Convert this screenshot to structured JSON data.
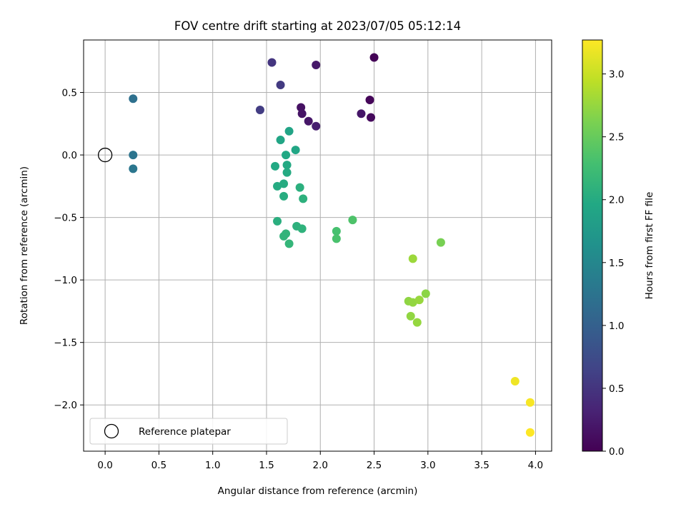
{
  "chart_data": {
    "type": "scatter",
    "title": "FOV centre drift starting at 2023/07/05 05:12:14",
    "xlabel": "Angular distance from reference (arcmin)",
    "ylabel": "Rotation from reference (arcmin)",
    "xlim": [
      -0.2,
      4.15
    ],
    "ylim": [
      -2.37,
      0.92
    ],
    "xticks": [
      0.0,
      0.5,
      1.0,
      1.5,
      2.0,
      2.5,
      3.0,
      3.5,
      4.0
    ],
    "xtick_labels": [
      "0.0",
      "0.5",
      "1.0",
      "1.5",
      "2.0",
      "2.5",
      "3.0",
      "3.5",
      "4.0"
    ],
    "yticks": [
      0.5,
      0.0,
      -0.5,
      -1.0,
      -1.5,
      -2.0
    ],
    "ytick_labels": [
      "0.5",
      "0.0",
      "−0.5",
      "−1.0",
      "−1.5",
      "−2.0"
    ],
    "grid": true,
    "legend": {
      "placement": "lower-left",
      "entries": [
        "Reference platepar"
      ]
    },
    "reference_point": {
      "x": 0.0,
      "y": 0.0,
      "label": "Reference platepar"
    },
    "colorbar": {
      "label": "Hours from first FF file",
      "colormap": "viridis",
      "range": [
        0.0,
        3.27
      ],
      "ticks": [
        0.0,
        0.5,
        1.0,
        1.5,
        2.0,
        2.5,
        3.0
      ],
      "tick_labels": [
        "0.0",
        "0.5",
        "1.0",
        "1.5",
        "2.0",
        "2.5",
        "3.0"
      ]
    },
    "points": [
      {
        "x": 2.5,
        "y": 0.78,
        "hours": 0.02
      },
      {
        "x": 2.46,
        "y": 0.44,
        "hours": 0.05
      },
      {
        "x": 2.47,
        "y": 0.3,
        "hours": 0.08
      },
      {
        "x": 2.38,
        "y": 0.33,
        "hours": 0.2
      },
      {
        "x": 1.96,
        "y": 0.72,
        "hours": 0.22
      },
      {
        "x": 1.82,
        "y": 0.38,
        "hours": 0.15
      },
      {
        "x": 1.83,
        "y": 0.33,
        "hours": 0.18
      },
      {
        "x": 1.89,
        "y": 0.27,
        "hours": 0.2
      },
      {
        "x": 1.96,
        "y": 0.23,
        "hours": 0.28
      },
      {
        "x": 1.55,
        "y": 0.74,
        "hours": 0.5
      },
      {
        "x": 1.63,
        "y": 0.56,
        "hours": 0.55
      },
      {
        "x": 1.44,
        "y": 0.36,
        "hours": 0.58
      },
      {
        "x": 0.26,
        "y": 0.45,
        "hours": 1.2
      },
      {
        "x": 0.26,
        "y": 0.0,
        "hours": 1.25
      },
      {
        "x": 0.26,
        "y": -0.11,
        "hours": 1.28
      },
      {
        "x": 1.71,
        "y": 0.19,
        "hours": 1.9
      },
      {
        "x": 1.63,
        "y": 0.12,
        "hours": 1.92
      },
      {
        "x": 1.77,
        "y": 0.04,
        "hours": 1.94
      },
      {
        "x": 1.68,
        "y": 0.0,
        "hours": 1.96
      },
      {
        "x": 1.58,
        "y": -0.09,
        "hours": 1.97
      },
      {
        "x": 1.69,
        "y": -0.08,
        "hours": 1.98
      },
      {
        "x": 1.69,
        "y": -0.14,
        "hours": 1.99
      },
      {
        "x": 1.6,
        "y": -0.25,
        "hours": 2.0
      },
      {
        "x": 1.66,
        "y": -0.23,
        "hours": 2.01
      },
      {
        "x": 1.66,
        "y": -0.33,
        "hours": 2.02
      },
      {
        "x": 1.81,
        "y": -0.26,
        "hours": 2.06
      },
      {
        "x": 1.84,
        "y": -0.35,
        "hours": 2.08
      },
      {
        "x": 1.6,
        "y": -0.53,
        "hours": 2.05
      },
      {
        "x": 1.78,
        "y": -0.57,
        "hours": 2.08
      },
      {
        "x": 1.83,
        "y": -0.59,
        "hours": 2.1
      },
      {
        "x": 1.68,
        "y": -0.63,
        "hours": 2.12
      },
      {
        "x": 1.66,
        "y": -0.65,
        "hours": 2.12
      },
      {
        "x": 1.71,
        "y": -0.71,
        "hours": 2.14
      },
      {
        "x": 2.15,
        "y": -0.61,
        "hours": 2.3
      },
      {
        "x": 2.15,
        "y": -0.67,
        "hours": 2.32
      },
      {
        "x": 2.3,
        "y": -0.52,
        "hours": 2.35
      },
      {
        "x": 3.12,
        "y": -0.7,
        "hours": 2.6
      },
      {
        "x": 2.86,
        "y": -0.83,
        "hours": 2.78
      },
      {
        "x": 2.98,
        "y": -1.11,
        "hours": 2.7
      },
      {
        "x": 2.82,
        "y": -1.17,
        "hours": 2.72
      },
      {
        "x": 2.86,
        "y": -1.18,
        "hours": 2.74
      },
      {
        "x": 2.92,
        "y": -1.16,
        "hours": 2.76
      },
      {
        "x": 2.84,
        "y": -1.29,
        "hours": 2.73
      },
      {
        "x": 2.9,
        "y": -1.34,
        "hours": 2.75
      },
      {
        "x": 3.81,
        "y": -1.81,
        "hours": 3.2
      },
      {
        "x": 3.95,
        "y": -1.98,
        "hours": 3.24
      },
      {
        "x": 3.95,
        "y": -2.22,
        "hours": 3.27
      }
    ]
  }
}
